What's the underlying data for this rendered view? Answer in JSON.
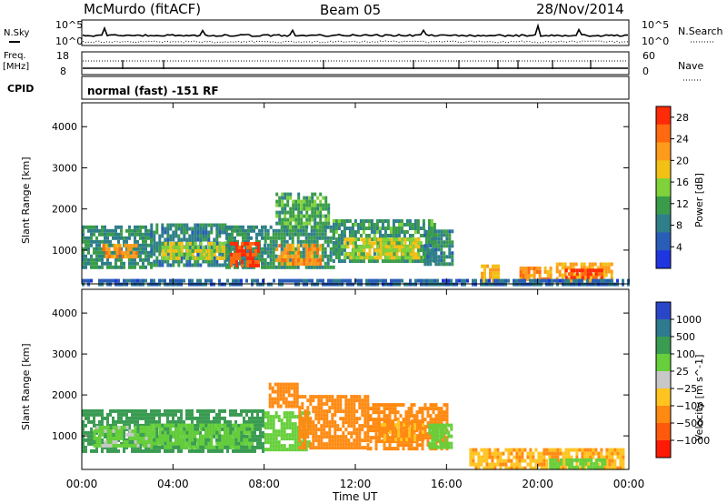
{
  "header": {
    "title": "McMurdo (fitACF)",
    "beam": "Beam 05",
    "date": "28/Nov/2014"
  },
  "top_panels": {
    "nsky_label": "N.Sky",
    "nsearch_label": "N.Search",
    "noise_ticks": [
      "10^5",
      "10^0"
    ],
    "freq_label_1": "Freq.",
    "freq_label_2": "[MHz]",
    "freq_ticks": [
      "18",
      "8"
    ],
    "nave_label": "Nave",
    "nave_ticks": [
      "60",
      "0"
    ],
    "cpid_label": "CPID",
    "cpid_text": "normal (fast) -151 RF"
  },
  "colors": {
    "power_scale": [
      "#1f35e0",
      "#2a5db8",
      "#2f7f8a",
      "#3a9c4a",
      "#7fd23a",
      "#f3c016",
      "#ff9b1a",
      "#ff6a10",
      "#ff2a08"
    ],
    "velocity_scale": [
      "#2a46c8",
      "#2e7a8e",
      "#3a9b52",
      "#66cf3b",
      "#c8c8c8",
      "#ffc420",
      "#ff8a12",
      "#ff5a0c",
      "#ff1a06"
    ]
  },
  "chart_data": [
    {
      "type": "heatmap",
      "panel": "power",
      "ylabel": "Slant Range [km]",
      "xlabel": "Time UT",
      "x_ticks": [
        "00:00",
        "04:00",
        "08:00",
        "12:00",
        "16:00",
        "20:00",
        "00:00"
      ],
      "xlim_hours": [
        0,
        24
      ],
      "y_ticks": [
        1000,
        2000,
        3000,
        4000
      ],
      "ylim": [
        180,
        4580
      ],
      "colorbar_label": "Power [dB]",
      "colorbar_ticks": [
        4,
        8,
        12,
        16,
        20,
        24,
        28
      ],
      "colorbar_range": [
        0,
        30
      ],
      "regions": [
        {
          "t0": 0.0,
          "t1": 3.0,
          "r0": 600,
          "r1": 1600,
          "value": 10
        },
        {
          "t0": 0.9,
          "t1": 2.4,
          "r0": 800,
          "r1": 1150,
          "value": 22
        },
        {
          "t0": 3.0,
          "t1": 6.5,
          "r0": 650,
          "r1": 1650,
          "value": 9
        },
        {
          "t0": 3.5,
          "t1": 6.3,
          "r0": 800,
          "r1": 1200,
          "value": 16
        },
        {
          "t0": 6.3,
          "t1": 8.0,
          "r0": 550,
          "r1": 1600,
          "value": 10
        },
        {
          "t0": 6.5,
          "t1": 7.8,
          "r0": 650,
          "r1": 1200,
          "value": 27
        },
        {
          "t0": 8.0,
          "t1": 11.0,
          "r0": 550,
          "r1": 1600,
          "value": 10
        },
        {
          "t0": 8.5,
          "t1": 10.5,
          "r0": 700,
          "r1": 1150,
          "value": 22
        },
        {
          "t0": 8.5,
          "t1": 10.8,
          "r0": 1600,
          "r1": 2400,
          "value": 12
        },
        {
          "t0": 11.0,
          "t1": 15.5,
          "r0": 700,
          "r1": 1750,
          "value": 11
        },
        {
          "t0": 11.5,
          "t1": 14.8,
          "r0": 850,
          "r1": 1300,
          "value": 17
        },
        {
          "t0": 15.0,
          "t1": 16.2,
          "r0": 700,
          "r1": 1500,
          "value": 9
        },
        {
          "t0": 17.5,
          "t1": 18.3,
          "r0": 250,
          "r1": 650,
          "value": 20
        },
        {
          "t0": 19.2,
          "t1": 20.6,
          "r0": 250,
          "r1": 600,
          "value": 22
        },
        {
          "t0": 20.8,
          "t1": 23.2,
          "r0": 250,
          "r1": 700,
          "value": 20
        },
        {
          "t0": 21.2,
          "t1": 22.8,
          "r0": 300,
          "r1": 550,
          "value": 28
        },
        {
          "t0": 0.0,
          "t1": 24.0,
          "r0": 180,
          "r1": 300,
          "value": 6
        }
      ]
    },
    {
      "type": "heatmap",
      "panel": "velocity",
      "ylabel": "Slant Range [km]",
      "xlabel": "Time UT",
      "x_ticks": [
        "00:00",
        "04:00",
        "08:00",
        "12:00",
        "16:00",
        "20:00",
        "00:00"
      ],
      "xlim_hours": [
        0,
        24
      ],
      "y_ticks": [
        1000,
        2000,
        3000,
        4000
      ],
      "ylim": [
        180,
        4580
      ],
      "colorbar_label": "Velocity [m s^-1]",
      "colorbar_ticks": [
        1000,
        500,
        100,
        25,
        -25,
        -100,
        -500,
        -1000
      ],
      "regions": [
        {
          "t0": 0.0,
          "t1": 8.0,
          "r0": 650,
          "r1": 1650,
          "value": 150
        },
        {
          "t0": 0.5,
          "t1": 3.0,
          "r0": 800,
          "r1": 1250,
          "value": 30
        },
        {
          "t0": 3.0,
          "t1": 7.5,
          "r0": 700,
          "r1": 1300,
          "value": 80
        },
        {
          "t0": 8.0,
          "t1": 10.0,
          "r0": 650,
          "r1": 1600,
          "value": 60
        },
        {
          "t0": 8.2,
          "t1": 9.5,
          "r0": 1700,
          "r1": 2300,
          "value": -200
        },
        {
          "t0": 9.5,
          "t1": 12.5,
          "r0": 700,
          "r1": 2000,
          "value": -150
        },
        {
          "t0": 12.5,
          "t1": 16.0,
          "r0": 700,
          "r1": 1800,
          "value": -180
        },
        {
          "t0": 13.0,
          "t1": 15.0,
          "r0": 900,
          "r1": 1400,
          "value": -120
        },
        {
          "t0": 15.2,
          "t1": 16.2,
          "r0": 700,
          "r1": 1300,
          "value": 60
        },
        {
          "t0": 17.0,
          "t1": 23.8,
          "r0": 200,
          "r1": 700,
          "value": -90
        },
        {
          "t0": 20.5,
          "t1": 23.0,
          "r0": 250,
          "r1": 450,
          "value": 40
        }
      ]
    }
  ]
}
